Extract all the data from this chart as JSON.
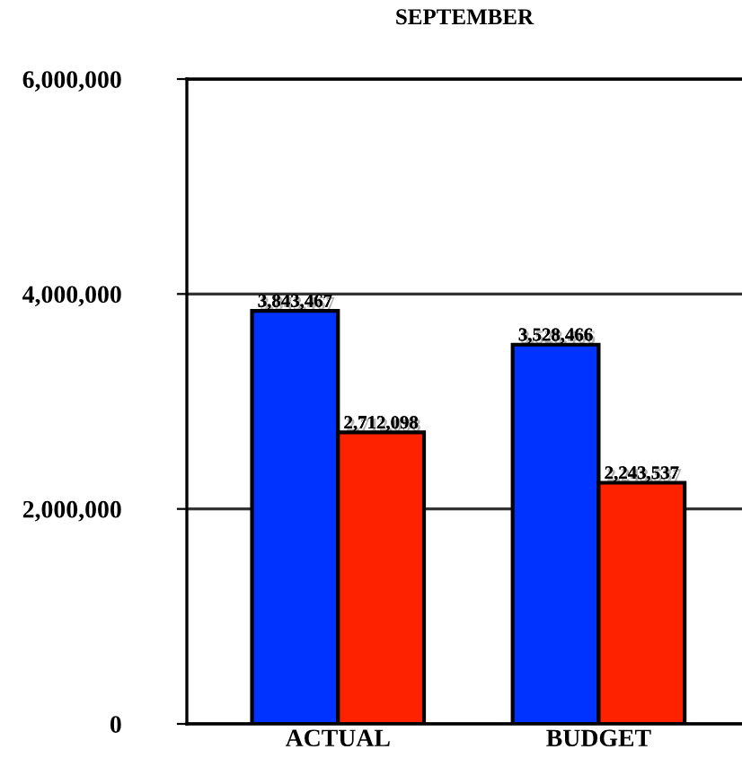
{
  "chart_data": {
    "type": "bar",
    "title": "SEPTEMBER",
    "categories": [
      "ACTUAL",
      "BUDGET"
    ],
    "series": [
      {
        "color": "#0033ff",
        "values": [
          3843467,
          3528466
        ],
        "value_labels": [
          "3,843,467",
          "3,528,466"
        ]
      },
      {
        "color": "#ff2200",
        "values": [
          2712098,
          2243537
        ],
        "value_labels": [
          "2,712,098",
          "2,243,537"
        ]
      }
    ],
    "ylim": [
      0,
      6000000
    ],
    "yticks": [
      {
        "value": 0,
        "label": "0"
      },
      {
        "value": 2000000,
        "label": "2,000,000"
      },
      {
        "value": 4000000,
        "label": "4,000,000"
      },
      {
        "value": 6000000,
        "label": "6,000,000"
      }
    ],
    "grid": "y"
  }
}
